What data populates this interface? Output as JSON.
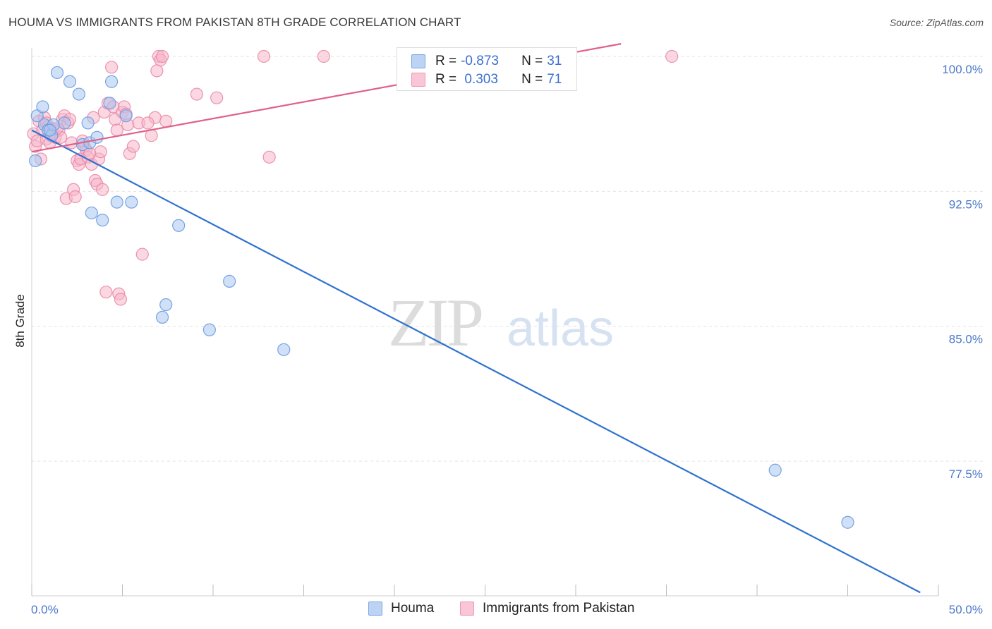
{
  "header": {
    "title": "HOUMA VS IMMIGRANTS FROM PAKISTAN 8TH GRADE CORRELATION CHART",
    "source": "Source: ZipAtlas.com"
  },
  "watermark": {
    "zip": "ZIP",
    "atlas": "atlas"
  },
  "legend": {
    "rows": [
      {
        "r_label": "R = ",
        "r_value": "-0.873",
        "n_label": "N = ",
        "n_value": "31"
      },
      {
        "r_label": "R = ",
        "r_value": " 0.303",
        "n_label": "N = ",
        "n_value": "71"
      }
    ]
  },
  "colors": {
    "blue_fill": "#a9c6f0",
    "blue_stroke": "#6a9be0",
    "blue_line": "#2f72d0",
    "pink_fill": "#f7b6ca",
    "pink_stroke": "#e889a8",
    "pink_line": "#e0608a",
    "tick": "#4a78c8",
    "grid": "#e2e2e2"
  },
  "chart_data": {
    "type": "scatter",
    "title": "HOUMA VS IMMIGRANTS FROM PAKISTAN 8TH GRADE CORRELATION CHART",
    "xlabel": "",
    "ylabel": "8th Grade",
    "xlim": [
      0,
      50
    ],
    "ylim": [
      70.2,
      100.7
    ],
    "x_tick_labels": [
      "0.0%",
      "50.0%"
    ],
    "y_ticks": [
      {
        "value": 100.0,
        "label": "100.0%"
      },
      {
        "value": 92.5,
        "label": "92.5%"
      },
      {
        "value": 85.0,
        "label": "85.0%"
      },
      {
        "value": 77.5,
        "label": "77.5%"
      }
    ],
    "series": [
      {
        "name": "Houma",
        "color_key": "blue",
        "r": -0.873,
        "n": 31,
        "trend": {
          "x0": 0.0,
          "y0": 95.9,
          "x1": 49.0,
          "y1": 70.2
        },
        "points": [
          [
            0.2,
            94.2
          ],
          [
            0.3,
            96.7
          ],
          [
            0.6,
            97.2
          ],
          [
            0.7,
            96.2
          ],
          [
            0.9,
            95.9
          ],
          [
            1.1,
            95.6
          ],
          [
            1.2,
            96.2
          ],
          [
            1.4,
            99.1
          ],
          [
            1.8,
            96.3
          ],
          [
            2.1,
            98.6
          ],
          [
            2.6,
            97.9
          ],
          [
            2.8,
            95.1
          ],
          [
            3.1,
            96.3
          ],
          [
            3.2,
            95.2
          ],
          [
            3.3,
            91.3
          ],
          [
            3.6,
            95.5
          ],
          [
            3.9,
            90.9
          ],
          [
            4.3,
            97.4
          ],
          [
            4.4,
            98.6
          ],
          [
            4.7,
            91.9
          ],
          [
            5.2,
            96.7
          ],
          [
            5.5,
            91.9
          ],
          [
            7.2,
            85.5
          ],
          [
            7.4,
            86.2
          ],
          [
            8.1,
            90.6
          ],
          [
            9.8,
            84.8
          ],
          [
            10.9,
            87.5
          ],
          [
            13.9,
            83.7
          ],
          [
            41.0,
            77.0
          ],
          [
            45.0,
            74.1
          ],
          [
            1.0,
            95.9
          ]
        ]
      },
      {
        "name": "Immigrants from Pakistan",
        "color_key": "pink",
        "r": 0.303,
        "n": 71,
        "trend": {
          "x0": 0.0,
          "y0": 94.7,
          "x1": 32.5,
          "y1": 100.7
        },
        "points": [
          [
            0.1,
            95.7
          ],
          [
            0.2,
            95.0
          ],
          [
            0.3,
            95.3
          ],
          [
            0.4,
            96.4
          ],
          [
            0.5,
            94.3
          ],
          [
            0.6,
            95.9
          ],
          [
            0.7,
            96.6
          ],
          [
            0.8,
            95.4
          ],
          [
            0.9,
            96.1
          ],
          [
            1.0,
            95.2
          ],
          [
            1.1,
            96.0
          ],
          [
            1.2,
            95.7
          ],
          [
            1.3,
            95.5
          ],
          [
            1.5,
            95.9
          ],
          [
            1.6,
            95.5
          ],
          [
            1.7,
            96.5
          ],
          [
            1.8,
            96.7
          ],
          [
            1.9,
            92.1
          ],
          [
            2.0,
            96.3
          ],
          [
            2.1,
            96.5
          ],
          [
            2.2,
            95.2
          ],
          [
            2.3,
            92.6
          ],
          [
            2.4,
            92.2
          ],
          [
            2.5,
            94.2
          ],
          [
            2.6,
            94.0
          ],
          [
            2.7,
            94.3
          ],
          [
            2.9,
            95.0
          ],
          [
            3.0,
            94.8
          ],
          [
            3.1,
            94.4
          ],
          [
            3.3,
            94.0
          ],
          [
            3.4,
            96.6
          ],
          [
            3.5,
            93.1
          ],
          [
            3.6,
            92.9
          ],
          [
            3.7,
            94.3
          ],
          [
            3.8,
            94.7
          ],
          [
            3.9,
            92.6
          ],
          [
            4.0,
            96.9
          ],
          [
            4.1,
            86.9
          ],
          [
            4.2,
            97.4
          ],
          [
            4.4,
            99.4
          ],
          [
            4.5,
            97.2
          ],
          [
            4.6,
            96.5
          ],
          [
            4.7,
            95.9
          ],
          [
            4.8,
            86.8
          ],
          [
            4.9,
            86.5
          ],
          [
            5.0,
            96.9
          ],
          [
            5.1,
            97.2
          ],
          [
            5.2,
            96.8
          ],
          [
            5.3,
            96.2
          ],
          [
            5.4,
            94.6
          ],
          [
            5.6,
            95.0
          ],
          [
            5.9,
            96.3
          ],
          [
            6.1,
            89.0
          ],
          [
            6.6,
            95.6
          ],
          [
            6.8,
            96.6
          ],
          [
            6.9,
            99.2
          ],
          [
            7.0,
            100.0
          ],
          [
            7.1,
            99.8
          ],
          [
            7.2,
            100.0
          ],
          [
            7.4,
            96.4
          ],
          [
            9.1,
            97.9
          ],
          [
            10.2,
            97.7
          ],
          [
            12.8,
            100.0
          ],
          [
            13.1,
            94.4
          ],
          [
            16.1,
            100.0
          ],
          [
            35.3,
            100.0
          ],
          [
            0.8,
            96.3
          ],
          [
            1.4,
            96.0
          ],
          [
            2.8,
            95.3
          ],
          [
            3.2,
            94.6
          ],
          [
            6.4,
            96.3
          ]
        ]
      }
    ]
  },
  "bottom_legend": {
    "items": [
      {
        "label": "Houma"
      },
      {
        "label": "Immigrants from Pakistan"
      }
    ]
  }
}
